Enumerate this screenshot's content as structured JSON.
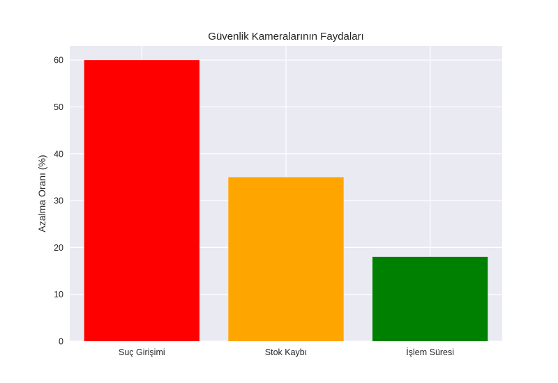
{
  "chart_data": {
    "type": "bar",
    "title": "Güvenlik Kameralarının Faydaları",
    "xlabel": "",
    "ylabel": "Azalma Oranı (%)",
    "categories": [
      "Suç Girişimi",
      "Stok Kaybı",
      "İşlem Süresi"
    ],
    "values": [
      60,
      35,
      18
    ],
    "colors": [
      "#ff0000",
      "#ffa500",
      "#008000"
    ],
    "ylim": [
      0,
      63
    ],
    "yticks": [
      0,
      10,
      20,
      30,
      40,
      50,
      60
    ],
    "grid": true,
    "legend": "none"
  },
  "style": {
    "plot_background": "#eaeaf2",
    "grid_color": "#ffffff"
  }
}
